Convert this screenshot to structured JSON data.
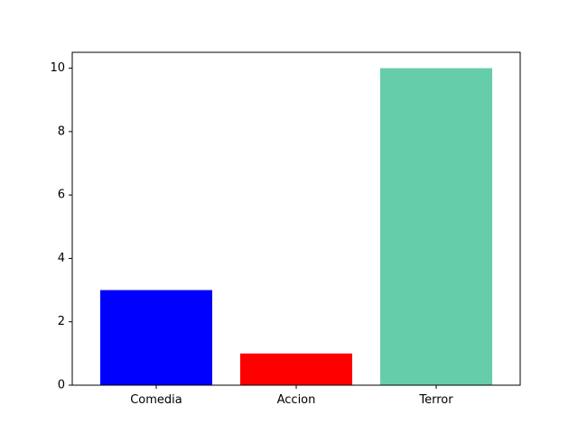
{
  "chart_data": {
    "type": "bar",
    "categories": [
      "Comedia",
      "Accion",
      "Terror"
    ],
    "values": [
      3,
      1,
      10
    ],
    "colors": [
      "#0000ff",
      "#ff0000",
      "#66cdaa"
    ],
    "title": "",
    "xlabel": "",
    "ylabel": "",
    "ylim": [
      0,
      10.5
    ],
    "yticks": [
      0,
      2,
      4,
      6,
      8,
      10
    ],
    "grid": false,
    "legend": "none"
  }
}
